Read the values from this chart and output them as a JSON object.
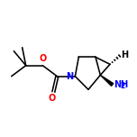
{
  "background_color": "#ffffff",
  "bond_color": "#000000",
  "atom_colors": {
    "N": "#0000ff",
    "O": "#ff0000",
    "NH2": "#0000ff",
    "H": "#000000"
  },
  "figsize": [
    1.52,
    1.52
  ],
  "dpi": 100,
  "font_size_atom": 7.0,
  "font_size_sub": 5.5
}
